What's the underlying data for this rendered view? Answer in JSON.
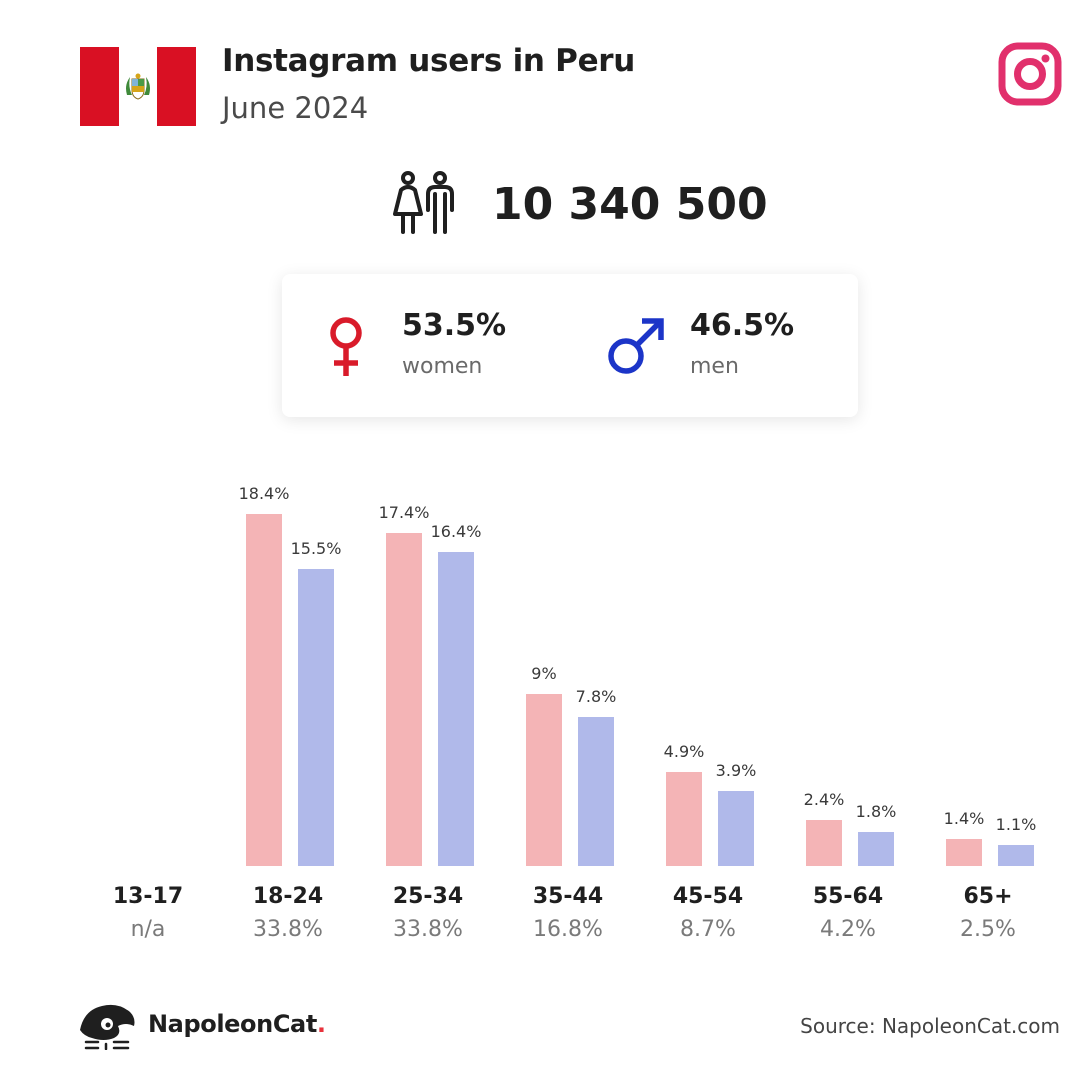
{
  "header": {
    "title": "Instagram users in Peru",
    "subtitle": "June 2024",
    "flag_colors": [
      "#d91023",
      "#ffffff",
      "#d91023"
    ],
    "flag_icon": "peru-flag-icon",
    "platform_icon": "instagram-icon",
    "platform_color": "#e1306c"
  },
  "total": {
    "icon": "people-icon",
    "value": "10 340 500"
  },
  "gender": {
    "women": {
      "icon": "female-symbol-icon",
      "pct": "53.5%",
      "label": "women",
      "color": "#d91b2a"
    },
    "men": {
      "icon": "male-symbol-icon",
      "pct": "46.5%",
      "label": "men",
      "color": "#1c35c8"
    }
  },
  "chart_data": {
    "type": "bar",
    "categories": [
      "13-17",
      "18-24",
      "25-34",
      "35-44",
      "45-54",
      "55-64",
      "65+"
    ],
    "category_totals": [
      "n/a",
      "33.8%",
      "33.8%",
      "16.8%",
      "8.7%",
      "4.2%",
      "2.5%"
    ],
    "series": [
      {
        "values": [
          null,
          18.4,
          17.4,
          9,
          4.9,
          2.4,
          1.4
        ],
        "labels": [
          "",
          "18.4%",
          "17.4%",
          "9%",
          "4.9%",
          "2.4%",
          "1.4%"
        ],
        "color": "#f4b4b6"
      },
      {
        "values": [
          null,
          15.5,
          16.4,
          7.8,
          3.9,
          1.8,
          1.1
        ],
        "labels": [
          "",
          "15.5%",
          "16.4%",
          "7.8%",
          "3.9%",
          "1.8%",
          "1.1%"
        ],
        "color": "#b0b9ea"
      }
    ],
    "ylim": [
      0,
      18.4
    ],
    "grid": false,
    "legend": "none"
  },
  "footer": {
    "brand_icon": "napoleoncat-icon",
    "brand_name": "NapoleonCat",
    "brand_dot": ".",
    "source": "Source: NapoleonCat.com"
  }
}
